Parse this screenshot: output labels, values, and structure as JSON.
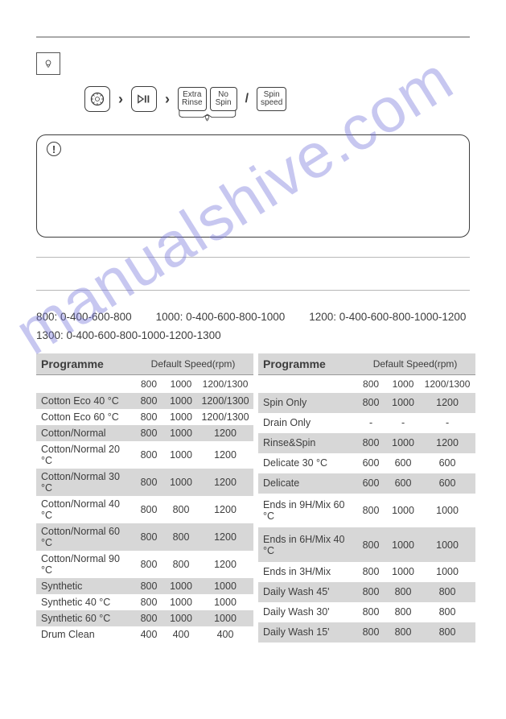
{
  "watermark_text": "manualshive.com",
  "buttons": {
    "extra_rinse_l1": "Extra",
    "extra_rinse_l2": "Rinse",
    "no_spin_l1": "No",
    "no_spin_l2": "Spin",
    "spin_speed_l1": "Spin",
    "spin_speed_l2": "speed"
  },
  "speed_text": {
    "line1_a": "800: 0-400-600-800",
    "line1_b": "1000: 0-400-600-800-1000",
    "line1_c": "1200: 0-400-600-800-1000-1200",
    "line2": "1300: 0-400-600-800-1000-1200-1300"
  },
  "table_headers": {
    "programme": "Programme",
    "default_speed": "Default Speed(rpm)",
    "c1": "800",
    "c2": "1000",
    "c3_left": "1200/1300",
    "c3_right": "1200/1300"
  },
  "left_rows": [
    {
      "name": "Cotton Eco 40 °C",
      "v1": "800",
      "v2": "1000",
      "v3": "1200/1300",
      "alt": true
    },
    {
      "name": "Cotton Eco 60 °C",
      "v1": "800",
      "v2": "1000",
      "v3": "1200/1300",
      "alt": false
    },
    {
      "name": "Cotton/Normal",
      "v1": "800",
      "v2": "1000",
      "v3": "1200",
      "alt": true
    },
    {
      "name": "Cotton/Normal 20 °C",
      "v1": "800",
      "v2": "1000",
      "v3": "1200",
      "alt": false
    },
    {
      "name": "Cotton/Normal 30 °C",
      "v1": "800",
      "v2": "1000",
      "v3": "1200",
      "alt": true
    },
    {
      "name": "Cotton/Normal 40 °C",
      "v1": "800",
      "v2": "800",
      "v3": "1200",
      "alt": false
    },
    {
      "name": "Cotton/Normal 60 °C",
      "v1": "800",
      "v2": "800",
      "v3": "1200",
      "alt": true
    },
    {
      "name": "Cotton/Normal 90 °C",
      "v1": "800",
      "v2": "800",
      "v3": "1200",
      "alt": false
    },
    {
      "name": "Synthetic",
      "v1": "800",
      "v2": "1000",
      "v3": "1000",
      "alt": true
    },
    {
      "name": "Synthetic 40 °C",
      "v1": "800",
      "v2": "1000",
      "v3": "1000",
      "alt": false
    },
    {
      "name": "Synthetic 60 °C",
      "v1": "800",
      "v2": "1000",
      "v3": "1000",
      "alt": true
    },
    {
      "name": "Drum Clean",
      "v1": "400",
      "v2": "400",
      "v3": "400",
      "alt": false
    }
  ],
  "right_rows": [
    {
      "name": "Spin Only",
      "v1": "800",
      "v2": "1000",
      "v3": "1200",
      "alt": true
    },
    {
      "name": "Drain Only",
      "v1": "-",
      "v2": "-",
      "v3": "-",
      "alt": false
    },
    {
      "name": "Rinse&Spin",
      "v1": "800",
      "v2": "1000",
      "v3": "1200",
      "alt": true
    },
    {
      "name": "Delicate 30 °C",
      "v1": "600",
      "v2": "600",
      "v3": "600",
      "alt": false
    },
    {
      "name": "Delicate",
      "v1": "600",
      "v2": "600",
      "v3": "600",
      "alt": true
    },
    {
      "name": "Ends in 9H/Mix 60 °C",
      "v1": "800",
      "v2": "1000",
      "v3": "1000",
      "alt": false
    },
    {
      "name": "Ends in 6H/Mix 40 °C",
      "v1": "800",
      "v2": "1000",
      "v3": "1000",
      "alt": true
    },
    {
      "name": "Ends in 3H/Mix",
      "v1": "800",
      "v2": "1000",
      "v3": "1000",
      "alt": false
    },
    {
      "name": "Daily Wash 45'",
      "v1": "800",
      "v2": "800",
      "v3": "800",
      "alt": true
    },
    {
      "name": "Daily Wash 30'",
      "v1": "800",
      "v2": "800",
      "v3": "800",
      "alt": false
    },
    {
      "name": "Daily Wash 15'",
      "v1": "800",
      "v2": "800",
      "v3": "800",
      "alt": true
    }
  ],
  "colors": {
    "alt_bg": "#d7d7d7",
    "text": "#3d3d3d",
    "watermark": "#6d6dd8"
  }
}
